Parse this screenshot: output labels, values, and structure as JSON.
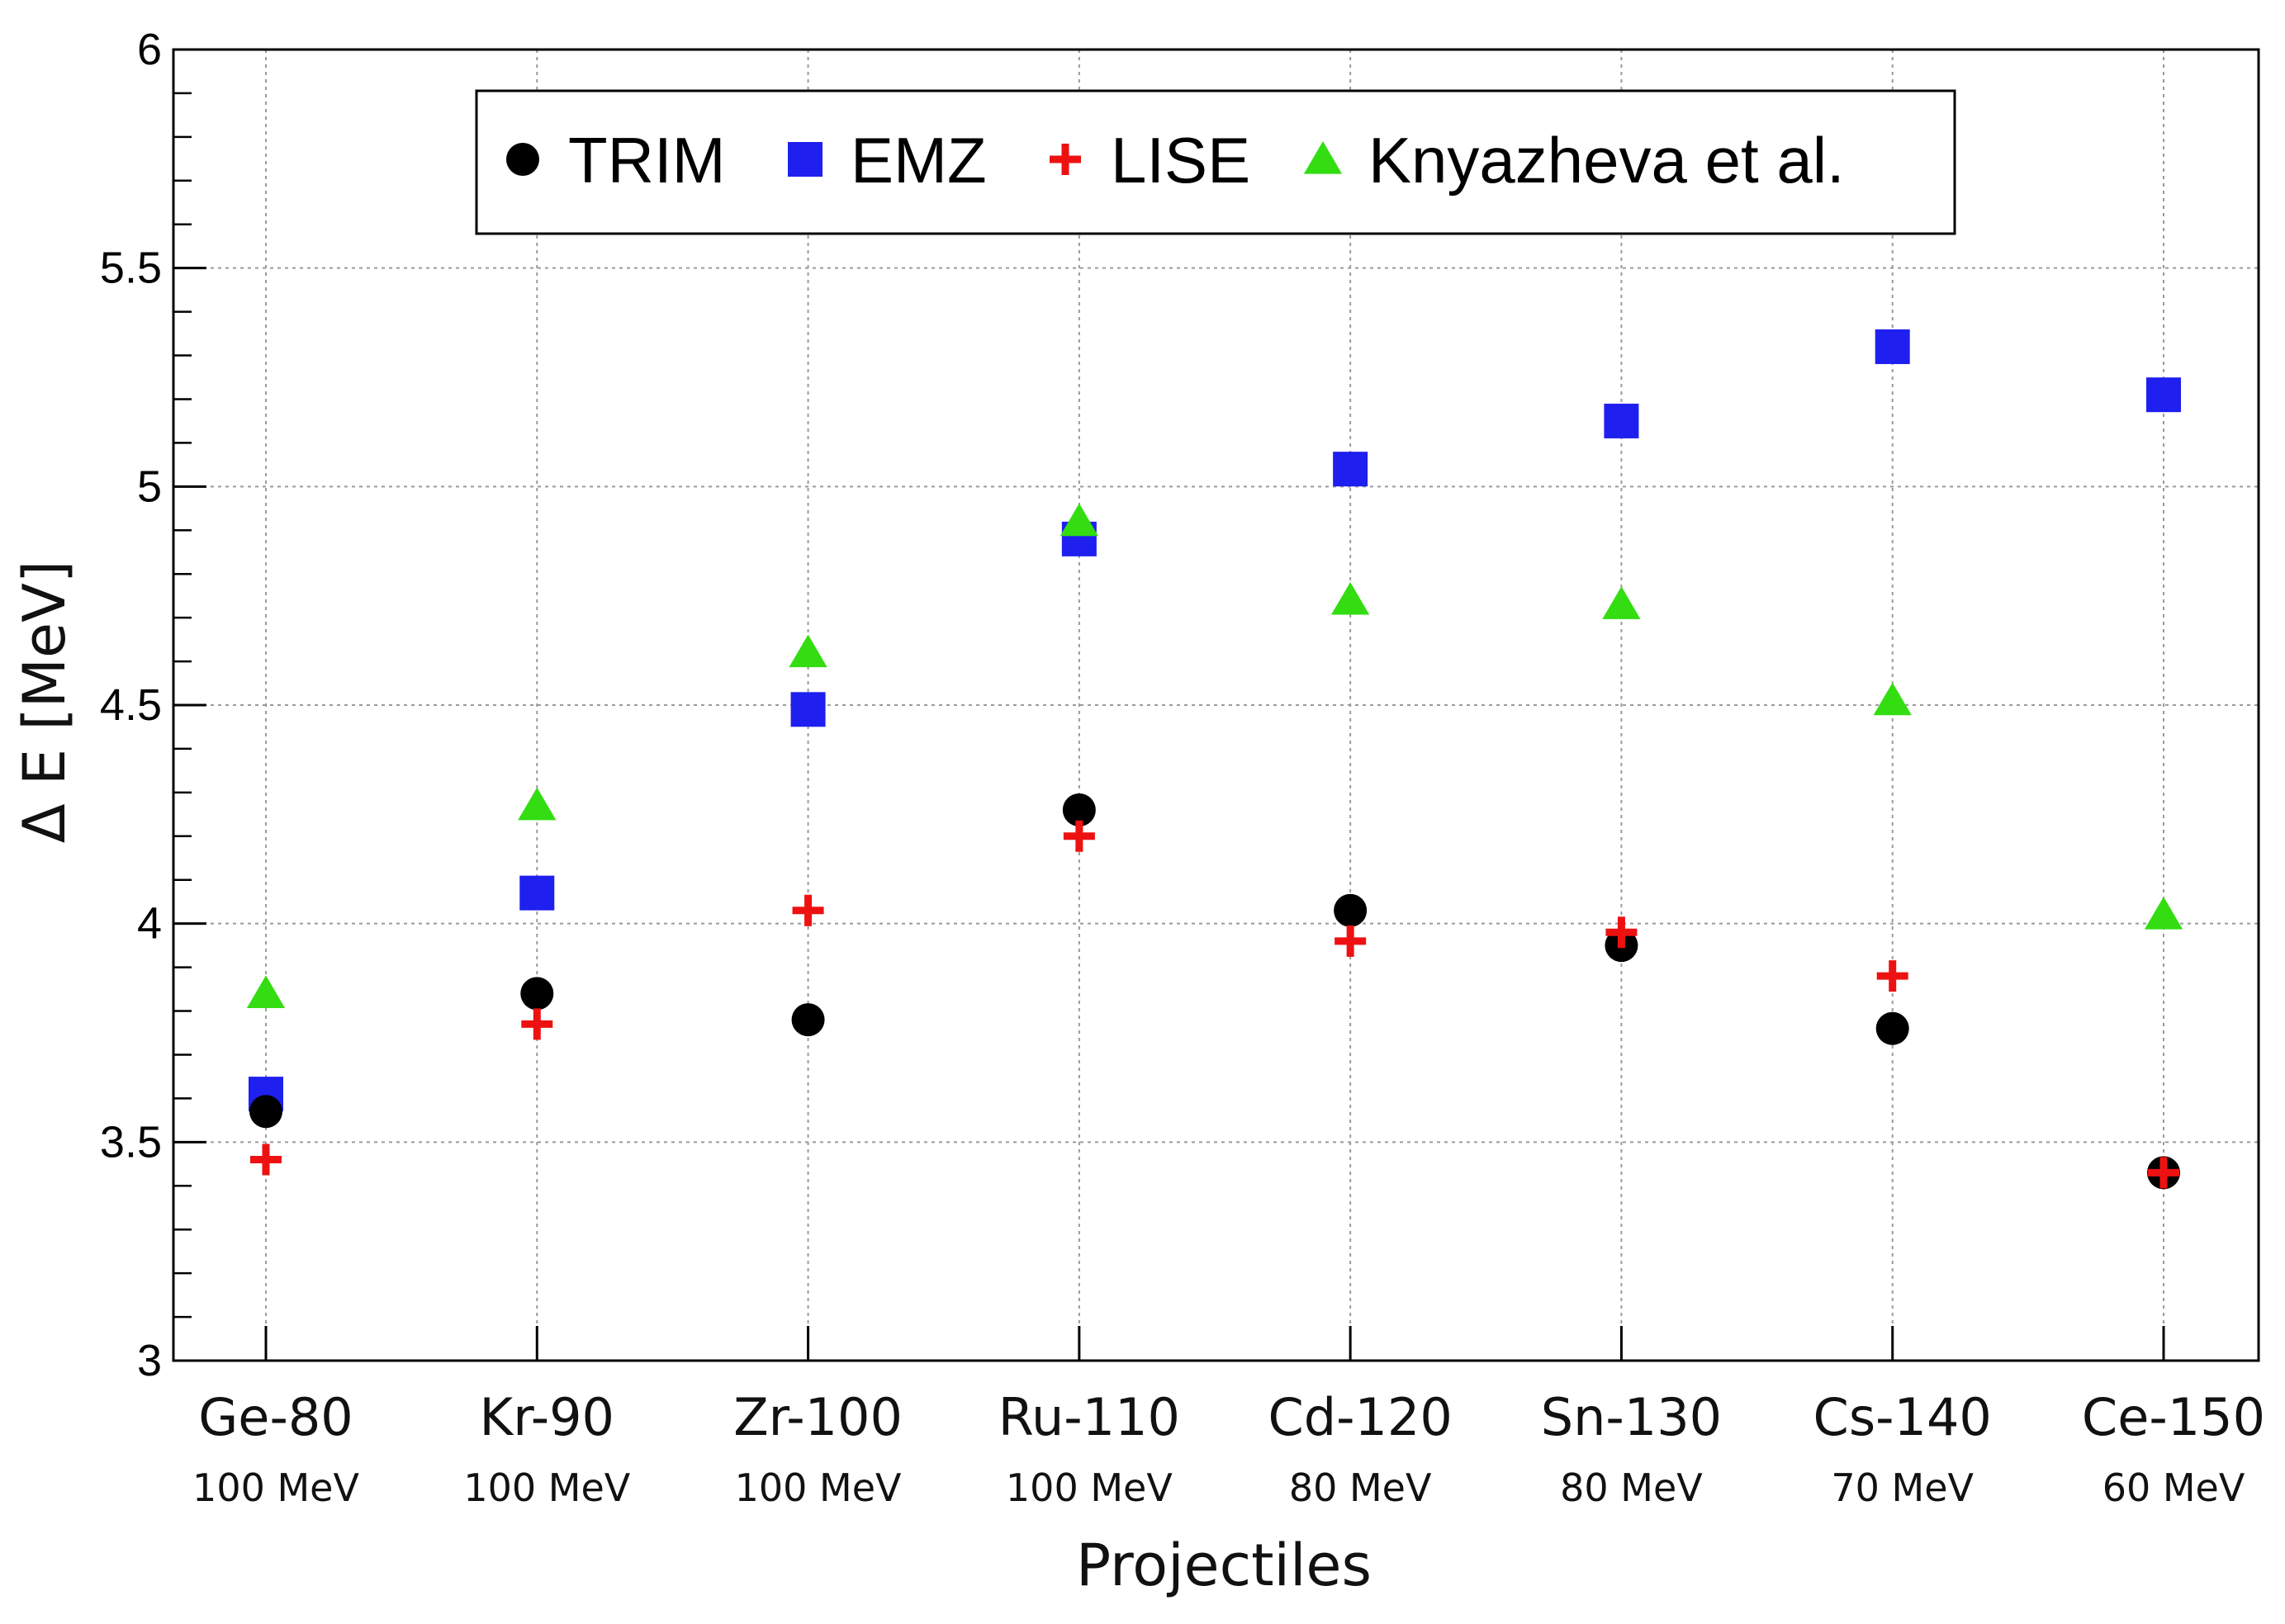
{
  "chart_data": {
    "type": "scatter",
    "xlabel": "Projectiles",
    "ylabel": "Δ E [MeV]",
    "ylim": [
      3,
      6
    ],
    "yticks": [
      "3",
      "3.5",
      "4",
      "4.5",
      "5",
      "5.5",
      "6"
    ],
    "grid": true,
    "legend_position": "top-center",
    "categories": [
      "Ge-80",
      "Kr-90",
      "Zr-100",
      "Ru-110",
      "Cd-120",
      "Sn-130",
      "Cs-140",
      "Ce-150"
    ],
    "energies": [
      "100 MeV",
      "100 MeV",
      "100 MeV",
      "100 MeV",
      "80 MeV",
      "80 MeV",
      "70 MeV",
      "60 MeV"
    ],
    "series": [
      {
        "name": "TRIM",
        "marker": "circle",
        "color": "#000000",
        "values": [
          3.57,
          3.84,
          3.78,
          4.26,
          4.03,
          3.95,
          3.76,
          3.43
        ]
      },
      {
        "name": "EMZ",
        "marker": "square",
        "color": "#1f1ff0",
        "values": [
          3.61,
          4.07,
          4.49,
          4.88,
          5.04,
          5.15,
          5.32,
          5.21
        ]
      },
      {
        "name": "LISE",
        "marker": "cross",
        "color": "#ee1111",
        "values": [
          3.46,
          3.77,
          4.03,
          4.2,
          3.96,
          3.98,
          3.88,
          3.43
        ]
      },
      {
        "name": "Knyazheva et al.",
        "marker": "triangle",
        "color": "#33dd11",
        "values": [
          3.84,
          4.27,
          4.62,
          4.92,
          4.74,
          4.73,
          4.51,
          4.02
        ]
      }
    ]
  }
}
